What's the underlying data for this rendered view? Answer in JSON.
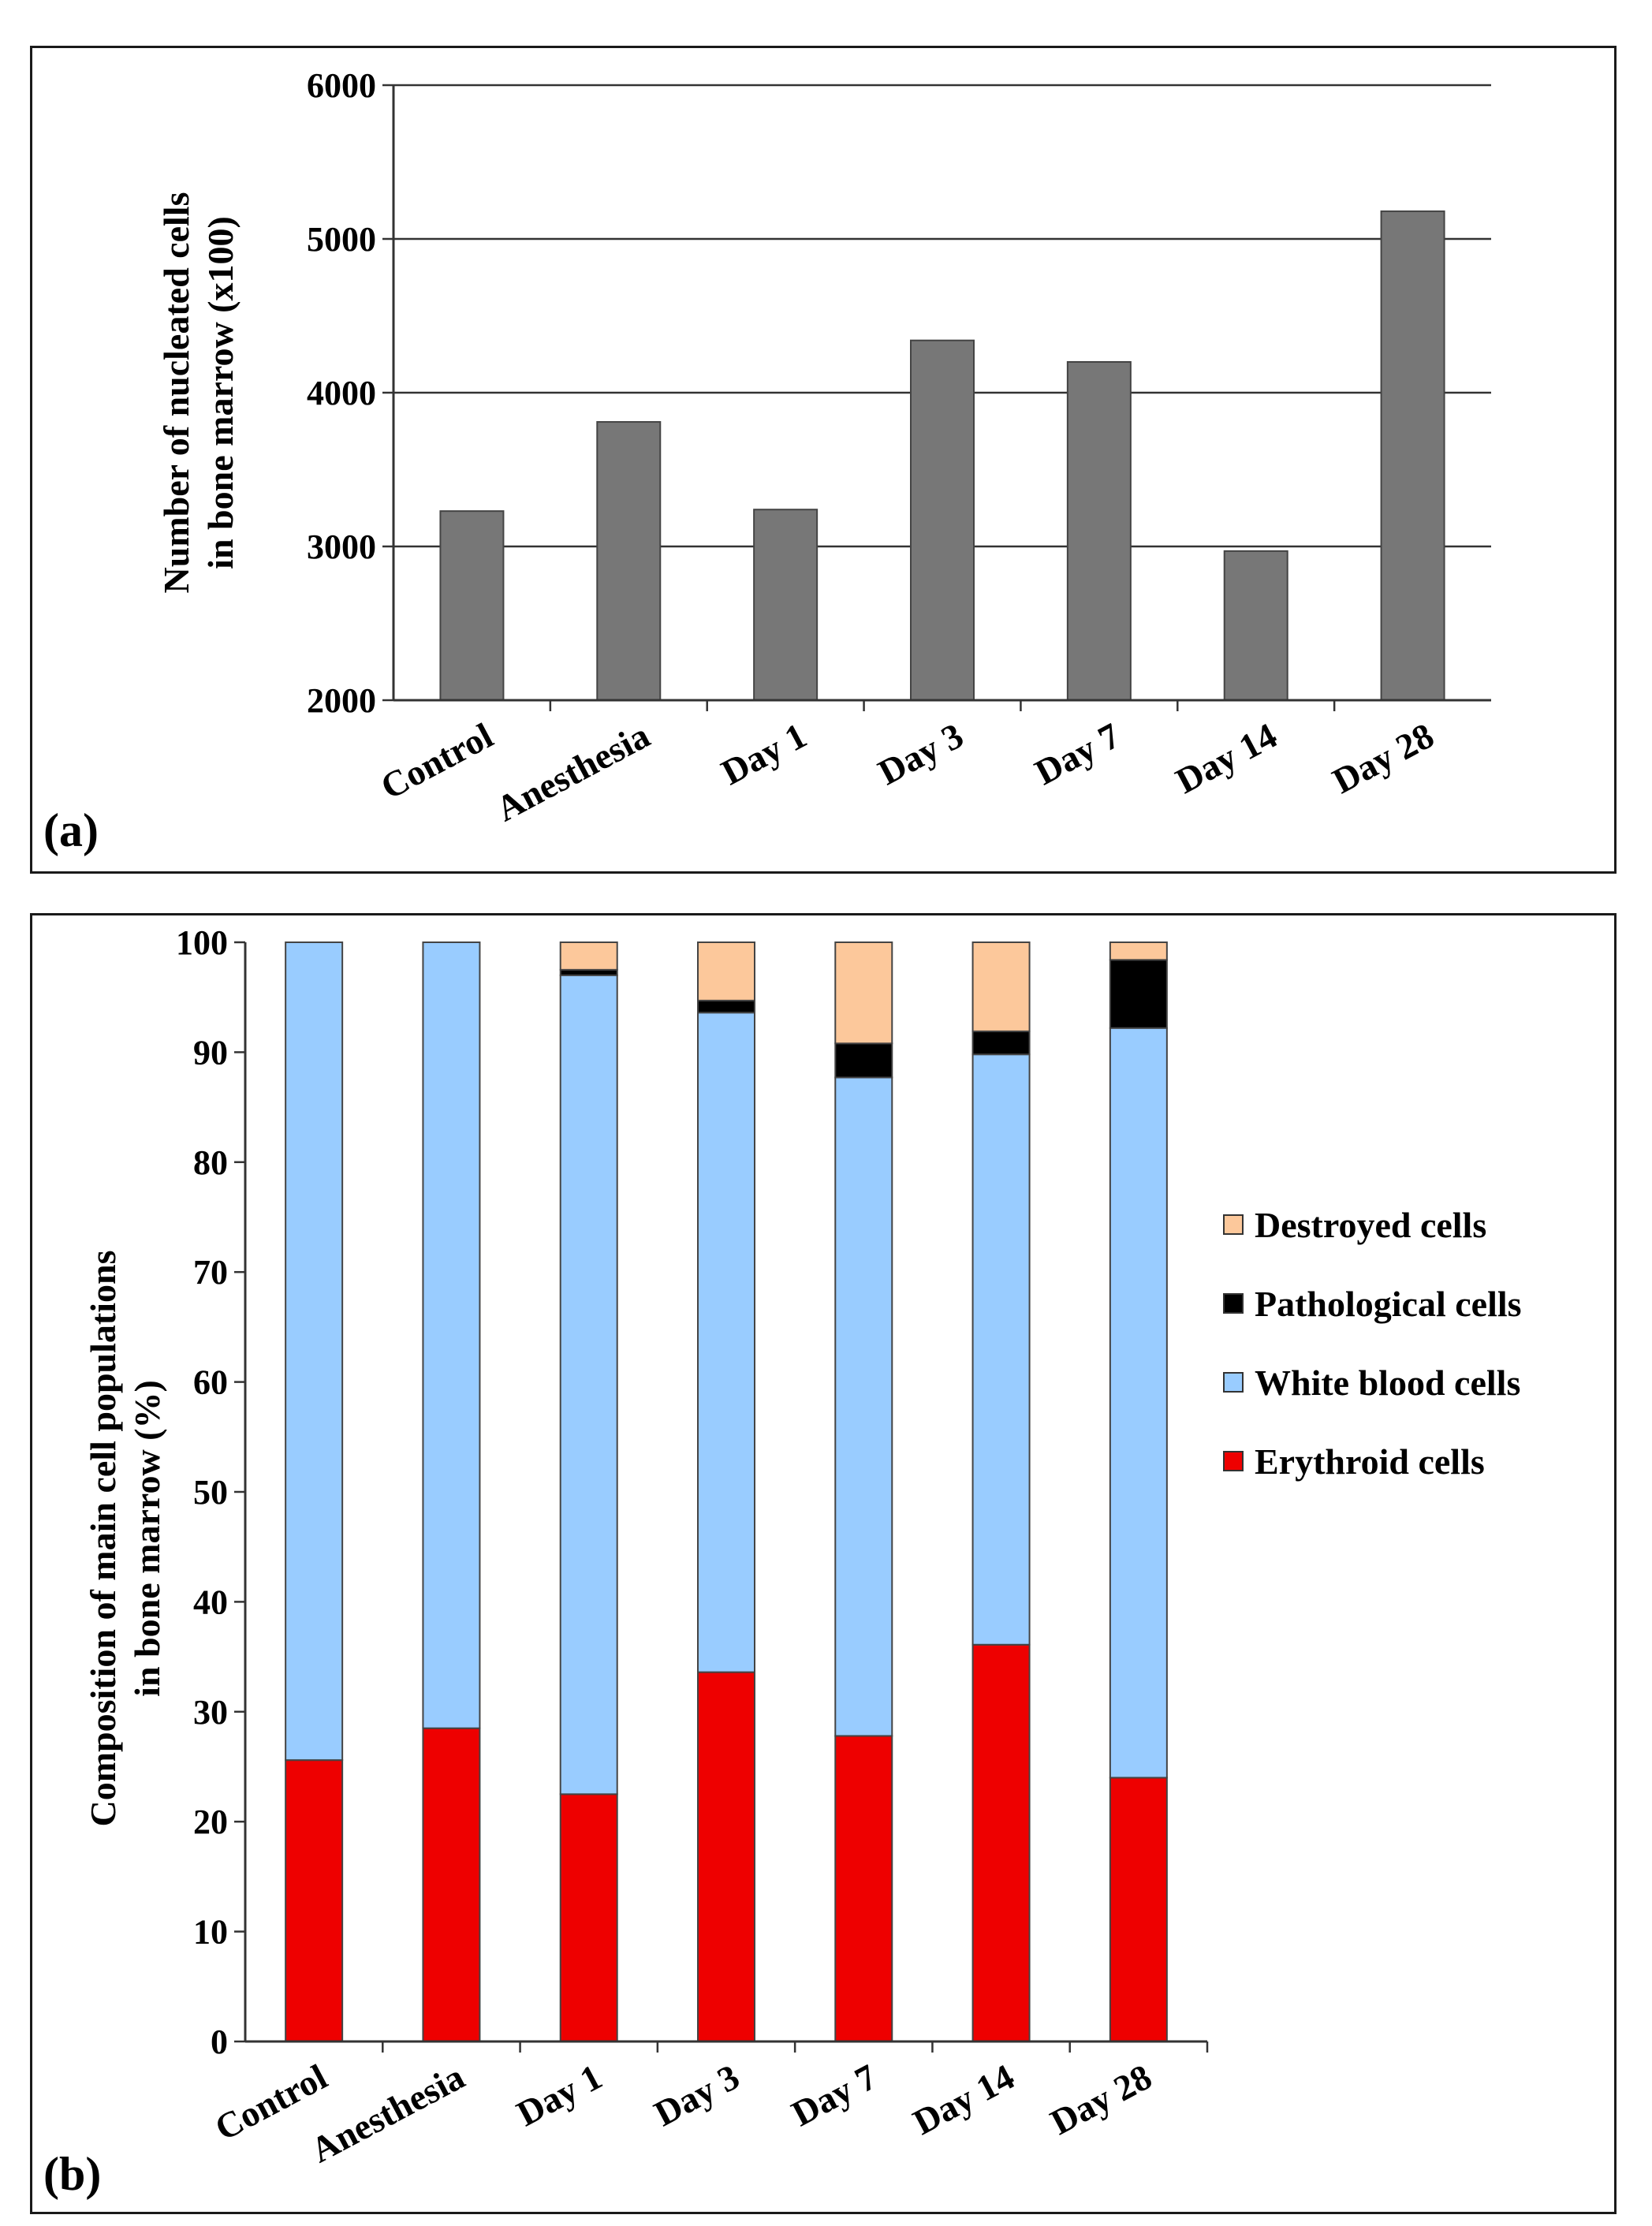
{
  "chart_data": [
    {
      "type": "bar",
      "panel_label": "(a)",
      "title": "",
      "xlabel": "",
      "ylabel_lines": [
        "Number of nucleated cells",
        "in bone marrow (x100)"
      ],
      "categories": [
        "Control",
        "Anesthesia",
        "Day 1",
        "Day 3",
        "Day 7",
        "Day 14",
        "Day 28"
      ],
      "values": [
        3230,
        3810,
        3240,
        4340,
        4200,
        2970,
        5180
      ],
      "ylim": [
        2000,
        6000
      ],
      "yticks": [
        "2000",
        "3000",
        "4000",
        "5000",
        "6000"
      ],
      "grid": true,
      "bar_color": "#777777"
    },
    {
      "type": "bar",
      "stacked": true,
      "panel_label": "(b)",
      "title": "",
      "xlabel": "",
      "ylabel_lines": [
        "Composition of main cell populations",
        "in bone marrow (%)"
      ],
      "categories": [
        "Control",
        "Anesthesia",
        "Day 1",
        "Day 3",
        "Day 7",
        "Day 14",
        "Day 28"
      ],
      "ylim": [
        0,
        100
      ],
      "yticks": [
        "0",
        "10",
        "20",
        "30",
        "40",
        "50",
        "60",
        "70",
        "80",
        "90",
        "100"
      ],
      "grid": false,
      "series": [
        {
          "name": "Erythroid cells",
          "color": "#ee0000",
          "values": [
            25.6,
            28.5,
            22.5,
            33.6,
            27.8,
            36.1,
            24.0
          ]
        },
        {
          "name": "White blood cells",
          "color": "#99ccff",
          "values": [
            74.4,
            71.5,
            74.5,
            60.0,
            59.9,
            53.7,
            68.2
          ]
        },
        {
          "name": "Pathological cells",
          "color": "#000000",
          "values": [
            0,
            0,
            0.5,
            1.1,
            3.1,
            2.1,
            6.2
          ]
        },
        {
          "name": "Destroyed cells",
          "color": "#fcc89b",
          "values": [
            0,
            0,
            2.5,
            5.3,
            9.2,
            8.1,
            1.6
          ]
        }
      ],
      "legend_order": [
        "Destroyed cells",
        "Pathological cells",
        "White blood cells",
        "Erythroid cells"
      ],
      "legend": "right"
    }
  ]
}
